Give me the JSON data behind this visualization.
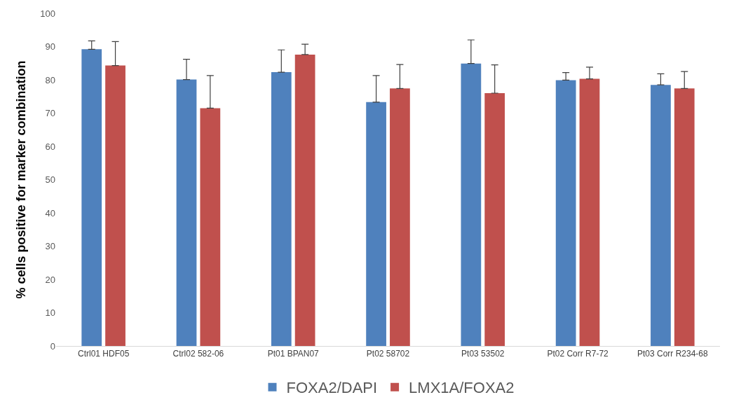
{
  "chart_data": {
    "type": "bar",
    "ylabel": "% cells positive for marker combination",
    "categories": [
      "Ctrl01 HDF05",
      "Ctrl02 582-06",
      "Pt01 BPAN07",
      "Pt02 58702",
      "Pt03 53502",
      "Pt02 Corr R7-72",
      "Pt03 Corr R234-68"
    ],
    "series": [
      {
        "name": "FOXA2/DAPI",
        "color": "#4f81bd",
        "values": [
          89.2,
          80.1,
          82.3,
          73.3,
          84.9,
          79.9,
          78.5
        ],
        "errors": [
          [
            89.2,
            91.7
          ],
          [
            80.1,
            86.2
          ],
          [
            82.3,
            89.0
          ],
          [
            73.3,
            81.3
          ],
          [
            84.9,
            92.0
          ],
          [
            79.9,
            82.2
          ],
          [
            78.5,
            81.8
          ]
        ]
      },
      {
        "name": "LMX1A/FOXA2",
        "color": "#c0504d",
        "values": [
          84.3,
          71.5,
          87.6,
          77.4,
          76.0,
          80.3,
          77.4
        ],
        "errors": [
          [
            84.3,
            91.5
          ],
          [
            71.5,
            81.3
          ],
          [
            87.6,
            90.7
          ],
          [
            77.4,
            84.6
          ],
          [
            76.0,
            84.5
          ],
          [
            80.3,
            83.8
          ],
          [
            77.4,
            82.5
          ]
        ]
      }
    ],
    "ylim": [
      0,
      100
    ],
    "yticks": [
      0,
      10,
      20,
      30,
      40,
      50,
      60,
      70,
      80,
      90,
      100
    ],
    "legend": "bottom"
  }
}
